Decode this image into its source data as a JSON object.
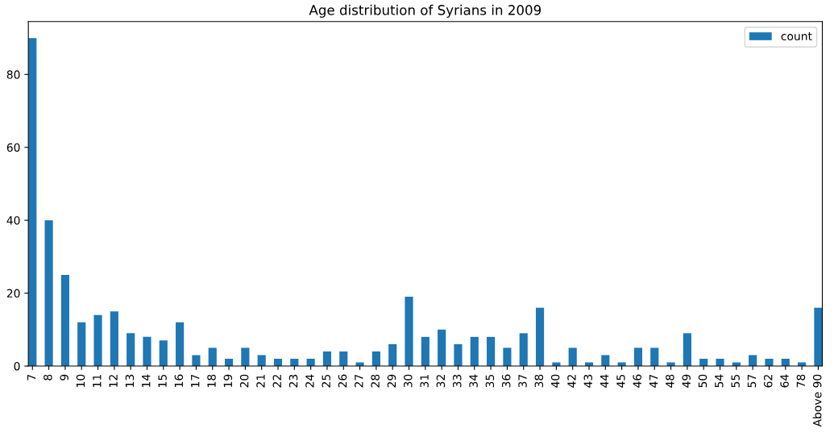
{
  "chart_data": {
    "type": "bar",
    "title": "Age distribution of Syrians in 2009",
    "categories": [
      "7",
      "8",
      "9",
      "10",
      "11",
      "12",
      "13",
      "14",
      "15",
      "16",
      "17",
      "18",
      "19",
      "20",
      "21",
      "22",
      "23",
      "24",
      "25",
      "26",
      "27",
      "28",
      "29",
      "30",
      "31",
      "32",
      "33",
      "34",
      "35",
      "36",
      "37",
      "38",
      "40",
      "42",
      "43",
      "44",
      "45",
      "46",
      "47",
      "48",
      "49",
      "50",
      "54",
      "55",
      "57",
      "62",
      "64",
      "78",
      "Above 90"
    ],
    "series": [
      {
        "name": "count",
        "color": "#1f77b4",
        "values": [
          90,
          40,
          25,
          12,
          14,
          15,
          9,
          8,
          7,
          12,
          3,
          5,
          2,
          5,
          3,
          2,
          2,
          2,
          4,
          4,
          1,
          4,
          6,
          19,
          8,
          10,
          6,
          8,
          8,
          5,
          9,
          16,
          1,
          5,
          1,
          3,
          1,
          5,
          5,
          1,
          9,
          2,
          2,
          1,
          3,
          2,
          2,
          1,
          16
        ]
      }
    ],
    "ylim": [
      0,
      94.5
    ],
    "yticks": [
      0,
      20,
      40,
      60,
      80
    ],
    "grid": false,
    "legend": "top right"
  }
}
